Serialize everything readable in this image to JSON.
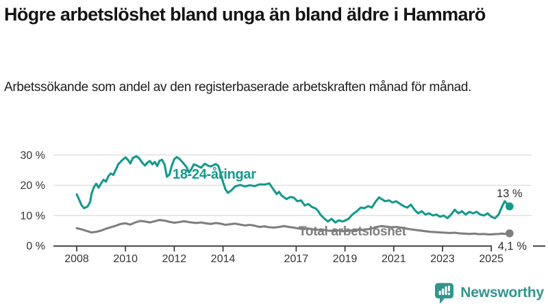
{
  "title": "Högre arbetslöshet bland unga än bland äldre i Hammarö",
  "subtitle": "Arbetssökande som andel av den registerbaserade arbetskraften månad för månad.",
  "footer": {
    "brand": "Newsworthy"
  },
  "colors": {
    "young": "#109a8c",
    "total": "#7e7e7e",
    "axis": "#3d3d3d",
    "grid": "#dcdcdc",
    "tick_label": "#333333",
    "end_label": "#2b2b2b",
    "logo": "#2f968c",
    "title_text": "#141414"
  },
  "chart_data": {
    "type": "line",
    "title": "Högre arbetslöshet bland unga än bland äldre i Hammarö",
    "subtitle": "Arbetssökande som andel av den registerbaserade arbetskraften månad för månad.",
    "xlabel": "",
    "ylabel": "",
    "xlim": [
      2007.8,
      2026.1
    ],
    "ylim": [
      0,
      32
    ],
    "grid": "horizontal",
    "legend_position": "inline-labels",
    "x_ticks": [
      {
        "value": 2008,
        "label": "2008"
      },
      {
        "value": 2010,
        "label": "2010"
      },
      {
        "value": 2012,
        "label": "2012"
      },
      {
        "value": 2014,
        "label": "2014"
      },
      {
        "value": 2017,
        "label": "2017"
      },
      {
        "value": 2019,
        "label": "2019"
      },
      {
        "value": 2021,
        "label": "2021"
      },
      {
        "value": 2023,
        "label": "2023"
      },
      {
        "value": 2025,
        "label": "2025"
      }
    ],
    "y_ticks": [
      {
        "value": 0,
        "label": "0 %"
      },
      {
        "value": 10,
        "label": "10 %"
      },
      {
        "value": 20,
        "label": "20 %"
      },
      {
        "value": 30,
        "label": "30 %"
      }
    ],
    "series": [
      {
        "name": "18-24-åringar",
        "color": "#109a8c",
        "end_label": "13 %",
        "points": [
          [
            2008.0,
            17.0
          ],
          [
            2008.1,
            15.2
          ],
          [
            2008.2,
            13.4
          ],
          [
            2008.3,
            12.4
          ],
          [
            2008.45,
            13.0
          ],
          [
            2008.55,
            14.5
          ],
          [
            2008.6,
            17.0
          ],
          [
            2008.7,
            19.3
          ],
          [
            2008.8,
            20.5
          ],
          [
            2008.9,
            19.2
          ],
          [
            2009.0,
            20.6
          ],
          [
            2009.1,
            21.8
          ],
          [
            2009.2,
            21.2
          ],
          [
            2009.3,
            23.0
          ],
          [
            2009.4,
            23.9
          ],
          [
            2009.5,
            23.4
          ],
          [
            2009.6,
            25.1
          ],
          [
            2009.7,
            26.9
          ],
          [
            2009.85,
            28.2
          ],
          [
            2010.0,
            29.2
          ],
          [
            2010.1,
            28.4
          ],
          [
            2010.2,
            27.2
          ],
          [
            2010.3,
            29.0
          ],
          [
            2010.45,
            29.6
          ],
          [
            2010.55,
            29.0
          ],
          [
            2010.7,
            27.3
          ],
          [
            2010.8,
            26.5
          ],
          [
            2010.9,
            27.5
          ],
          [
            2011.0,
            28.0
          ],
          [
            2011.1,
            26.9
          ],
          [
            2011.2,
            27.7
          ],
          [
            2011.3,
            26.4
          ],
          [
            2011.4,
            28.1
          ],
          [
            2011.5,
            28.4
          ],
          [
            2011.6,
            26.9
          ],
          [
            2011.7,
            22.8
          ],
          [
            2011.8,
            23.5
          ],
          [
            2011.9,
            26.5
          ],
          [
            2012.0,
            28.6
          ],
          [
            2012.1,
            29.3
          ],
          [
            2012.2,
            28.8
          ],
          [
            2012.35,
            27.5
          ],
          [
            2012.5,
            26.0
          ],
          [
            2012.6,
            24.2
          ],
          [
            2012.7,
            25.3
          ],
          [
            2012.8,
            26.9
          ],
          [
            2012.9,
            26.6
          ],
          [
            2013.0,
            26.2
          ],
          [
            2013.1,
            25.8
          ],
          [
            2013.25,
            27.1
          ],
          [
            2013.4,
            26.4
          ],
          [
            2013.5,
            26.2
          ],
          [
            2013.6,
            26.6
          ],
          [
            2013.7,
            27.0
          ],
          [
            2013.8,
            26.5
          ],
          [
            2013.9,
            24.0
          ],
          [
            2014.0,
            21.0
          ],
          [
            2014.1,
            18.6
          ],
          [
            2014.2,
            17.5
          ],
          [
            2014.35,
            18.4
          ],
          [
            2014.5,
            19.6
          ],
          [
            2014.7,
            20.1
          ],
          [
            2014.9,
            19.6
          ],
          [
            2015.1,
            20.0
          ],
          [
            2015.3,
            19.7
          ],
          [
            2015.5,
            20.3
          ],
          [
            2015.7,
            20.2
          ],
          [
            2015.9,
            20.6
          ],
          [
            2016.0,
            19.4
          ],
          [
            2016.1,
            18.2
          ],
          [
            2016.2,
            17.1
          ],
          [
            2016.3,
            17.8
          ],
          [
            2016.4,
            16.6
          ],
          [
            2016.6,
            15.4
          ],
          [
            2016.75,
            16.1
          ],
          [
            2016.9,
            15.9
          ],
          [
            2017.05,
            14.7
          ],
          [
            2017.2,
            15.0
          ],
          [
            2017.35,
            13.3
          ],
          [
            2017.5,
            13.8
          ],
          [
            2017.65,
            12.8
          ],
          [
            2017.8,
            12.3
          ],
          [
            2017.9,
            11.5
          ],
          [
            2018.0,
            10.2
          ],
          [
            2018.15,
            9.0
          ],
          [
            2018.3,
            8.0
          ],
          [
            2018.45,
            8.9
          ],
          [
            2018.6,
            7.7
          ],
          [
            2018.75,
            8.4
          ],
          [
            2018.9,
            8.0
          ],
          [
            2019.0,
            8.3
          ],
          [
            2019.15,
            8.9
          ],
          [
            2019.3,
            10.3
          ],
          [
            2019.5,
            11.5
          ],
          [
            2019.65,
            12.6
          ],
          [
            2019.8,
            12.4
          ],
          [
            2019.95,
            13.1
          ],
          [
            2020.1,
            12.6
          ],
          [
            2020.25,
            14.5
          ],
          [
            2020.4,
            16.0
          ],
          [
            2020.5,
            15.4
          ],
          [
            2020.65,
            14.7
          ],
          [
            2020.8,
            15.0
          ],
          [
            2020.95,
            14.3
          ],
          [
            2021.1,
            14.7
          ],
          [
            2021.25,
            13.9
          ],
          [
            2021.4,
            13.1
          ],
          [
            2021.55,
            12.6
          ],
          [
            2021.7,
            13.6
          ],
          [
            2021.85,
            11.9
          ],
          [
            2022.0,
            10.7
          ],
          [
            2022.15,
            11.4
          ],
          [
            2022.3,
            10.3
          ],
          [
            2022.45,
            10.7
          ],
          [
            2022.6,
            10.0
          ],
          [
            2022.75,
            10.3
          ],
          [
            2022.9,
            9.6
          ],
          [
            2023.05,
            10.0
          ],
          [
            2023.2,
            9.1
          ],
          [
            2023.35,
            10.3
          ],
          [
            2023.5,
            11.9
          ],
          [
            2023.65,
            10.7
          ],
          [
            2023.8,
            11.4
          ],
          [
            2023.95,
            10.3
          ],
          [
            2024.1,
            11.2
          ],
          [
            2024.25,
            10.7
          ],
          [
            2024.4,
            11.2
          ],
          [
            2024.55,
            10.3
          ],
          [
            2024.7,
            10.0
          ],
          [
            2024.85,
            10.7
          ],
          [
            2025.0,
            9.6
          ],
          [
            2025.15,
            9.1
          ],
          [
            2025.3,
            10.3
          ],
          [
            2025.45,
            13.1
          ],
          [
            2025.55,
            14.7
          ],
          [
            2025.65,
            13.8
          ],
          [
            2025.75,
            13.0
          ]
        ]
      },
      {
        "name": "Total arbetslöshet",
        "color": "#7e7e7e",
        "end_label": "4,1 %",
        "points": [
          [
            2008.0,
            5.8
          ],
          [
            2008.2,
            5.4
          ],
          [
            2008.4,
            4.9
          ],
          [
            2008.6,
            4.4
          ],
          [
            2008.8,
            4.6
          ],
          [
            2009.0,
            5.0
          ],
          [
            2009.2,
            5.6
          ],
          [
            2009.4,
            6.1
          ],
          [
            2009.6,
            6.6
          ],
          [
            2009.8,
            7.2
          ],
          [
            2010.0,
            7.4
          ],
          [
            2010.2,
            7.0
          ],
          [
            2010.4,
            7.7
          ],
          [
            2010.6,
            8.2
          ],
          [
            2010.8,
            8.0
          ],
          [
            2011.0,
            7.7
          ],
          [
            2011.2,
            8.1
          ],
          [
            2011.4,
            8.5
          ],
          [
            2011.6,
            8.3
          ],
          [
            2011.8,
            7.9
          ],
          [
            2012.0,
            7.6
          ],
          [
            2012.2,
            7.8
          ],
          [
            2012.4,
            8.1
          ],
          [
            2012.6,
            7.8
          ],
          [
            2012.9,
            7.5
          ],
          [
            2013.1,
            7.7
          ],
          [
            2013.3,
            7.4
          ],
          [
            2013.5,
            7.2
          ],
          [
            2013.7,
            7.5
          ],
          [
            2013.9,
            7.3
          ],
          [
            2014.1,
            6.9
          ],
          [
            2014.3,
            7.1
          ],
          [
            2014.5,
            7.3
          ],
          [
            2014.7,
            7.0
          ],
          [
            2014.9,
            6.7
          ],
          [
            2015.1,
            6.9
          ],
          [
            2015.3,
            6.6
          ],
          [
            2015.5,
            6.2
          ],
          [
            2015.7,
            6.4
          ],
          [
            2015.9,
            6.1
          ],
          [
            2016.1,
            6.0
          ],
          [
            2016.3,
            6.2
          ],
          [
            2016.5,
            6.5
          ],
          [
            2016.7,
            6.2
          ],
          [
            2016.9,
            6.0
          ],
          [
            2017.1,
            5.7
          ],
          [
            2017.3,
            5.5
          ],
          [
            2017.5,
            5.7
          ],
          [
            2017.7,
            5.4
          ],
          [
            2017.9,
            5.2
          ],
          [
            2018.1,
            5.3
          ],
          [
            2018.3,
            5.0
          ],
          [
            2018.5,
            4.9
          ],
          [
            2018.7,
            5.1
          ],
          [
            2018.9,
            4.8
          ],
          [
            2019.1,
            4.9
          ],
          [
            2019.3,
            5.1
          ],
          [
            2019.5,
            5.3
          ],
          [
            2019.7,
            5.2
          ],
          [
            2019.9,
            5.4
          ],
          [
            2020.1,
            5.7
          ],
          [
            2020.3,
            6.2
          ],
          [
            2020.5,
            6.5
          ],
          [
            2020.7,
            6.3
          ],
          [
            2020.9,
            6.1
          ],
          [
            2021.1,
            6.2
          ],
          [
            2021.3,
            6.0
          ],
          [
            2021.5,
            5.7
          ],
          [
            2021.7,
            5.4
          ],
          [
            2021.9,
            5.2
          ],
          [
            2022.1,
            5.0
          ],
          [
            2022.3,
            4.8
          ],
          [
            2022.5,
            4.6
          ],
          [
            2022.7,
            4.5
          ],
          [
            2022.9,
            4.4
          ],
          [
            2023.1,
            4.3
          ],
          [
            2023.3,
            4.2
          ],
          [
            2023.5,
            4.3
          ],
          [
            2023.7,
            4.1
          ],
          [
            2023.9,
            4.0
          ],
          [
            2024.1,
            3.9
          ],
          [
            2024.3,
            4.0
          ],
          [
            2024.5,
            3.8
          ],
          [
            2024.7,
            3.9
          ],
          [
            2024.9,
            3.7
          ],
          [
            2025.1,
            3.8
          ],
          [
            2025.3,
            3.9
          ],
          [
            2025.45,
            4.0
          ],
          [
            2025.6,
            3.9
          ],
          [
            2025.75,
            4.1
          ]
        ]
      }
    ]
  }
}
